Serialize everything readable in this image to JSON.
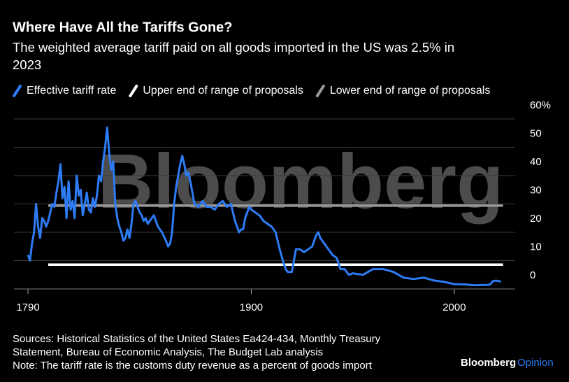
{
  "chart_data": {
    "type": "line",
    "title": "Where Have All the Tariffs Gone?",
    "subtitle": [
      "The weighted average tariff paid on all goods imported in the US was 2.5% in",
      "2023"
    ],
    "watermark": "Bloomberg",
    "x": [
      1790,
      1791,
      1792,
      1793,
      1794,
      1795,
      1796,
      1797,
      1798,
      1799,
      1800,
      1801,
      1802,
      1803,
      1804,
      1805,
      1806,
      1807,
      1808,
      1809,
      1810,
      1811,
      1812,
      1813,
      1814,
      1815,
      1816,
      1817,
      1818,
      1819,
      1820,
      1821,
      1822,
      1823,
      1824,
      1825,
      1826,
      1827,
      1828,
      1829,
      1830,
      1831,
      1832,
      1833,
      1834,
      1835,
      1836,
      1837,
      1838,
      1839,
      1840,
      1841,
      1842,
      1843,
      1844,
      1845,
      1846,
      1847,
      1848,
      1849,
      1850,
      1852,
      1854,
      1856,
      1858,
      1859,
      1860,
      1861,
      1862,
      1863,
      1864,
      1865,
      1866,
      1867,
      1868,
      1869,
      1870,
      1872,
      1874,
      1876,
      1878,
      1880,
      1882,
      1884,
      1886,
      1888,
      1890,
      1892,
      1894,
      1895,
      1896,
      1897,
      1898,
      1899,
      1900,
      1902,
      1904,
      1906,
      1908,
      1910,
      1912,
      1914,
      1916,
      1917,
      1918,
      1920,
      1922,
      1924,
      1926,
      1928,
      1930,
      1932,
      1933,
      1934,
      1936,
      1938,
      1940,
      1942,
      1944,
      1946,
      1948,
      1950,
      1955,
      1960,
      1965,
      1970,
      1975,
      1980,
      1985,
      1990,
      1995,
      2000,
      2005,
      2010,
      2015,
      2017,
      2018,
      2019,
      2020,
      2021,
      2022,
      2023
    ],
    "series": [
      {
        "name": "Effective tariff rate",
        "color": "#2d7cf6",
        "values": [
          12,
          10,
          16,
          20,
          30,
          22,
          18,
          25,
          24,
          22,
          24,
          27,
          30,
          29,
          34,
          38,
          44,
          32,
          36,
          25,
          38,
          28,
          31,
          25,
          40,
          33,
          35,
          26,
          30,
          34,
          28,
          27,
          32,
          29,
          33,
          40,
          38,
          45,
          50,
          57,
          48,
          42,
          45,
          30,
          25,
          22,
          20,
          17,
          18,
          21,
          18,
          23,
          30,
          31,
          29,
          27,
          26,
          24,
          25,
          23,
          24,
          26,
          22,
          20,
          17,
          15,
          16,
          20,
          30,
          36,
          40,
          44,
          47,
          44,
          40,
          41,
          38,
          30,
          29,
          31,
          29,
          29,
          28,
          30,
          31,
          29,
          30,
          24,
          20,
          21,
          21,
          25,
          27,
          29,
          28,
          27,
          26,
          24,
          23,
          22,
          20,
          14,
          9,
          7,
          6,
          6,
          14,
          14,
          13,
          14,
          15,
          19,
          20,
          18,
          16,
          14,
          12,
          11,
          7,
          7,
          5,
          5.5,
          5,
          7,
          7,
          6,
          4,
          3.5,
          4,
          3,
          2.5,
          1.7,
          1.6,
          1.3,
          1.4,
          1.4,
          1.8,
          2.8,
          2.9,
          2.9,
          2.8,
          2.5
        ]
      },
      {
        "name": "Upper end of range of proposals",
        "color": "#ffffff",
        "x": [
          1800,
          2024
        ],
        "values": [
          8.6,
          8.6
        ]
      },
      {
        "name": "Lower end of range of proposals",
        "color": "#9a9a9a",
        "x": [
          1800,
          2024
        ],
        "values": [
          29.4,
          29.4
        ]
      }
    ],
    "xlim": [
      1790,
      2030
    ],
    "xticks": [
      1790,
      1900,
      2000
    ],
    "ylim": [
      0,
      60
    ],
    "yticks": [
      {
        "value": 60,
        "label": "60%"
      },
      50,
      40,
      30,
      20,
      10,
      0
    ],
    "grid": true,
    "notes": [
      "Sources: Historical Statistics of the United States Ea424-434, Monthly Treasury",
      "Statement, Bureau of Economic Analysis, The Budget Lab analysis",
      "Note: The tariff rate is the customs duty revenue as a percent of goods import"
    ],
    "brand": [
      "Bloomberg",
      "Opinion"
    ]
  }
}
